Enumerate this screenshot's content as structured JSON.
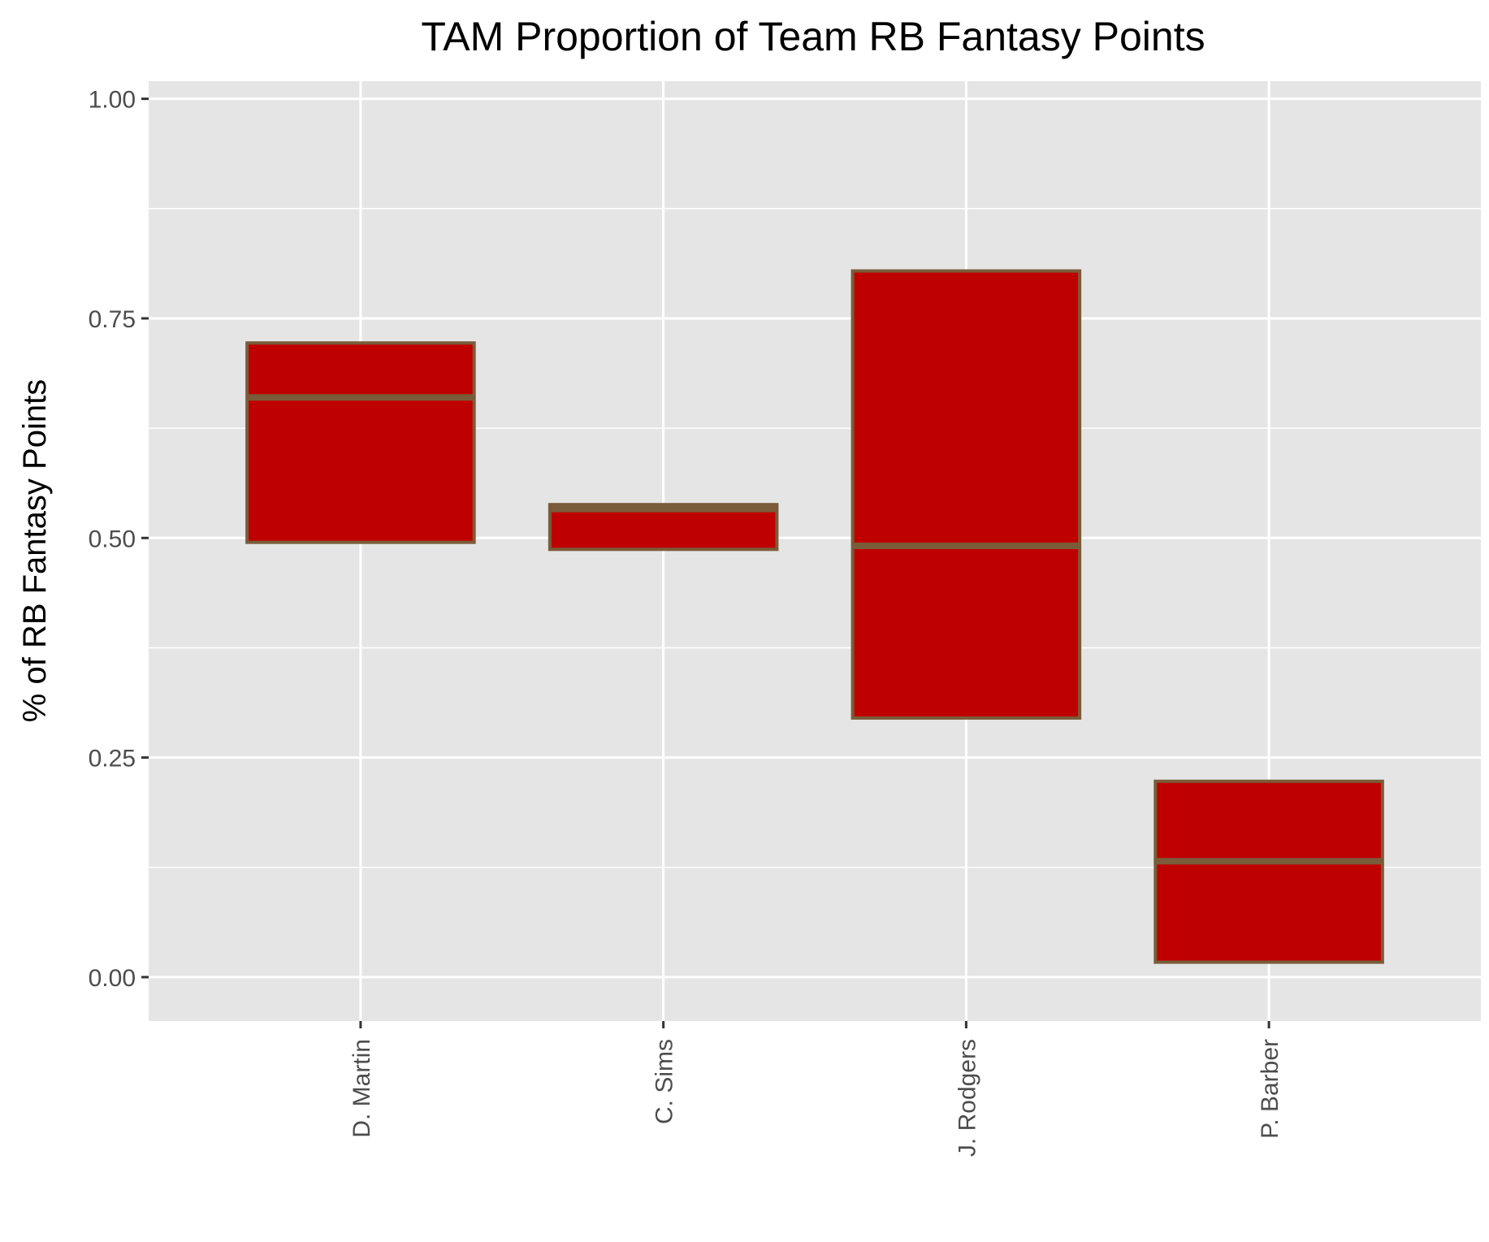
{
  "chart_data": {
    "type": "boxplot",
    "title": "TAM Proportion of Team RB Fantasy Points",
    "xlabel": "",
    "ylabel": "% of RB Fantasy Points",
    "ylim": [
      -0.05,
      1.02
    ],
    "yticks": [
      "0.00",
      "0.25",
      "0.50",
      "0.75",
      "1.00"
    ],
    "ytick_values": [
      0,
      0.25,
      0.5,
      0.75,
      1.0
    ],
    "categories": [
      "D. Martin",
      "C. Sims",
      "J. Rodgers",
      "P. Barber"
    ],
    "boxes": [
      {
        "category": "D. Martin",
        "q1": 0.495,
        "median": 0.66,
        "q3": 0.722
      },
      {
        "category": "C. Sims",
        "q1": 0.487,
        "median": 0.533,
        "q3": 0.538
      },
      {
        "category": "J. Rodgers",
        "q1": 0.295,
        "median": 0.491,
        "q3": 0.804
      },
      {
        "category": "P. Barber",
        "q1": 0.017,
        "median": 0.132,
        "q3": 0.223
      }
    ],
    "grid": true,
    "legend": "none",
    "colors": {
      "panel": "#e5e5e5",
      "grid": "#ffffff",
      "box_fill": "#bf0000",
      "box_outline": "#7a5c3a",
      "tick": "#333333"
    }
  }
}
